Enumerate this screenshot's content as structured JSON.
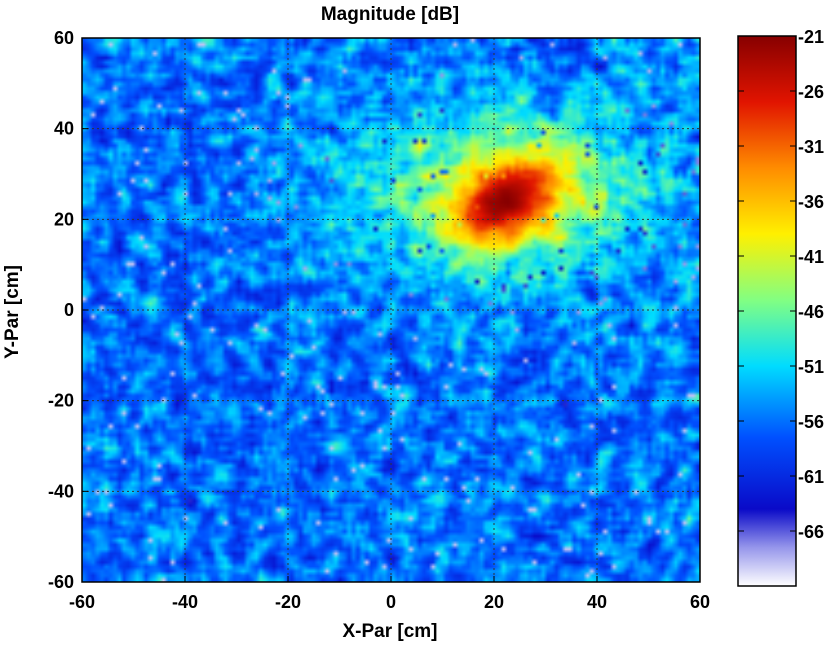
{
  "chart_data": {
    "type": "heatmap",
    "title": "Magnitude [dB]",
    "xlabel": "X-Par [cm]",
    "ylabel": "Y-Par [cm]",
    "xlim": [
      -60,
      60
    ],
    "ylim": [
      -60,
      60
    ],
    "x_ticks": [
      -60,
      -40,
      -20,
      0,
      20,
      40,
      60
    ],
    "y_ticks": [
      60,
      40,
      20,
      0,
      -20,
      -40,
      -60
    ],
    "grid": true,
    "colorbar": {
      "range": [
        -71,
        -21
      ],
      "ticks": [
        -21,
        -26,
        -31,
        -36,
        -41,
        -46,
        -51,
        -56,
        -61,
        -66
      ]
    },
    "background_level_db": -56,
    "hotspot": {
      "center": [
        22,
        24
      ],
      "peak_db": -21,
      "radius_x": 8,
      "radius_y": 6,
      "orientation_deg": 40
    },
    "halo": {
      "center": [
        22,
        26
      ],
      "level_db": -42,
      "radius_x": 28,
      "radius_y": 18
    }
  }
}
